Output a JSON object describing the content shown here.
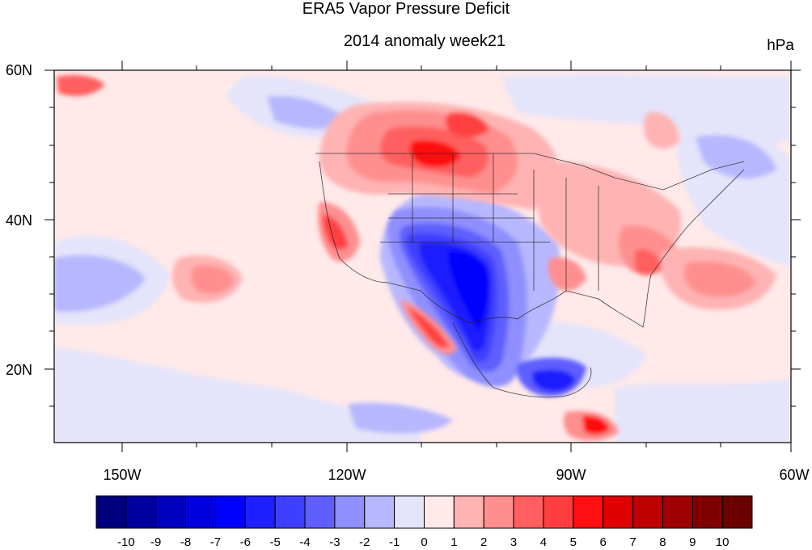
{
  "title": "ERA5 Vapor Pressure Deficit",
  "subtitle": "2014 anomaly week21",
  "units": "hPa",
  "lat_labels": [
    "60N",
    "40N",
    "20N"
  ],
  "lon_labels": [
    "150W",
    "120W",
    "90W",
    "60W"
  ],
  "colorbar": {
    "labels": [
      "-10",
      "-9",
      "-8",
      "-7",
      "-6",
      "-5",
      "-4",
      "-3",
      "-2",
      "-1",
      "0",
      "1",
      "2",
      "3",
      "4",
      "5",
      "6",
      "7",
      "8",
      "9",
      "10"
    ],
    "colors": [
      "#00007f",
      "#00009f",
      "#0000bf",
      "#0000df",
      "#0000ff",
      "#1f1fff",
      "#3f3fff",
      "#5f5fff",
      "#8f8fff",
      "#b7b7ff",
      "#e4e4fb",
      "#ffe9e9",
      "#ffb3b3",
      "#ff8f8f",
      "#ff5f5f",
      "#ff3f3f",
      "#ff0f0f",
      "#df0000",
      "#bf0000",
      "#9f0000",
      "#7f0000",
      "#6a0000"
    ]
  },
  "colors": {
    "background_pos": "#ffe9e9",
    "background_neg": "#e4e4fb"
  }
}
